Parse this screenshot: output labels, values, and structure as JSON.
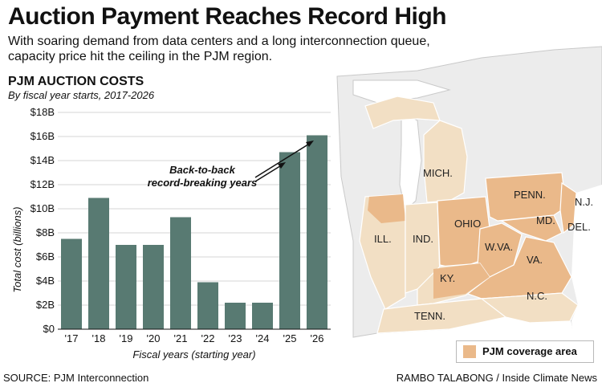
{
  "header": {
    "title": "Auction Payment Reaches Record High",
    "subtitle": "With soaring demand from data centers and a long interconnection queue, capacity price hit the ceiling in the PJM region."
  },
  "chart_data": {
    "type": "bar",
    "title": "PJM AUCTION COSTS",
    "subtitle": "By fiscal year starts, 2017-2026",
    "xlabel": "Fiscal years (starting year)",
    "ylabel": "Total cost (billions)",
    "categories": [
      "'17",
      "'18",
      "'19",
      "'20",
      "'21",
      "'22",
      "'23",
      "'24",
      "'25",
      "'26"
    ],
    "values": [
      7.5,
      10.9,
      7.0,
      7.0,
      9.3,
      3.9,
      2.2,
      2.2,
      14.7,
      16.1
    ],
    "yticks": [
      "$0",
      "$2B",
      "$4B",
      "$6B",
      "$8B",
      "$10B",
      "$12B",
      "$14B",
      "$16B",
      "$18B"
    ],
    "ylim": [
      0,
      18
    ],
    "grid": true,
    "bar_color": "#587a72",
    "annotation": {
      "line1": "Back-to-back",
      "line2": "record-breaking years"
    }
  },
  "map": {
    "states": [
      "MICH.",
      "PENN.",
      "N.J.",
      "OHIO",
      "MD.",
      "DEL.",
      "ILL.",
      "IND.",
      "W.VA.",
      "VA.",
      "KY.",
      "N.C.",
      "TENN."
    ],
    "legend_label": "PJM coverage area",
    "pjm_color": "#eab98a",
    "region_color": "#f2dfc4",
    "land_color": "#ececec",
    "water_color": "#ffffff"
  },
  "footer": {
    "source": "SOURCE: PJM Interconnection",
    "credit": "RAMBO TALABONG / Inside Climate News"
  }
}
